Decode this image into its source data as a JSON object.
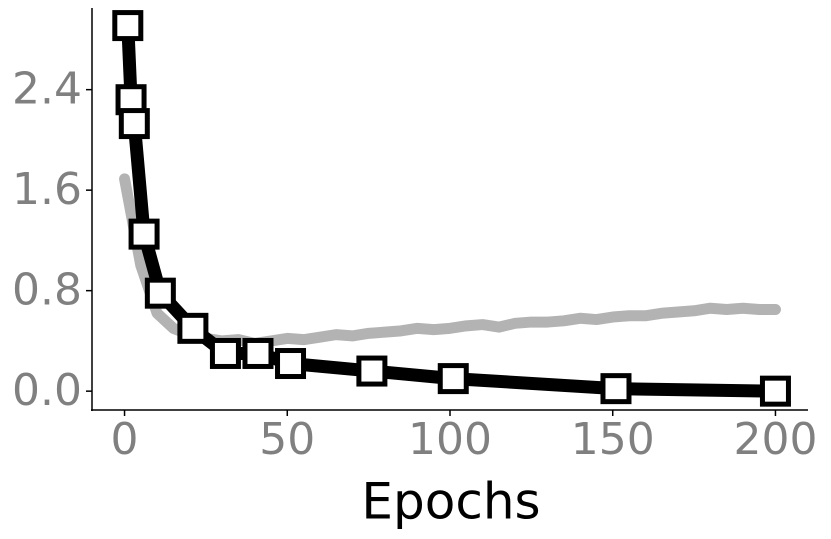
{
  "chart_data": {
    "type": "line",
    "x_label": "Epochs",
    "series": [
      {
        "color": "#b3b3b3",
        "marker": "none",
        "x": [
          0,
          5,
          10,
          15,
          20,
          25,
          30,
          35,
          40,
          45,
          50,
          55,
          60,
          65,
          70,
          75,
          80,
          85,
          90,
          95,
          100,
          105,
          110,
          115,
          120,
          125,
          130,
          135,
          140,
          145,
          150,
          155,
          160,
          165,
          170,
          175,
          180,
          185,
          190,
          195,
          200
        ],
        "values": [
          1.69,
          1.0,
          0.62,
          0.5,
          0.45,
          0.42,
          0.4,
          0.41,
          0.38,
          0.4,
          0.42,
          0.41,
          0.43,
          0.45,
          0.44,
          0.46,
          0.47,
          0.48,
          0.5,
          0.49,
          0.5,
          0.52,
          0.53,
          0.51,
          0.54,
          0.55,
          0.55,
          0.56,
          0.58,
          0.57,
          0.59,
          0.6,
          0.6,
          0.62,
          0.63,
          0.64,
          0.66,
          0.65,
          0.66,
          0.65,
          0.65
        ]
      },
      {
        "color": "#000000",
        "marker": "square",
        "x": [
          1,
          2,
          3,
          6,
          11,
          21,
          31,
          41,
          51,
          76,
          101,
          151,
          200
        ],
        "values": [
          2.91,
          2.32,
          2.13,
          1.25,
          0.78,
          0.5,
          0.3,
          0.3,
          0.22,
          0.16,
          0.1,
          0.02,
          0.0
        ]
      }
    ],
    "xlim": [
      -10,
      210
    ],
    "ylim": [
      -0.15,
      3.05
    ],
    "xticks": [
      0,
      50,
      100,
      150,
      200
    ],
    "yticks": [
      {
        "value": 0,
        "label": "0.0"
      },
      {
        "value": 0.8,
        "label": "0.8"
      },
      {
        "value": 1.6,
        "label": "1.6"
      },
      {
        "value": 2.4,
        "label": "2.4"
      }
    ],
    "grid": false
  }
}
